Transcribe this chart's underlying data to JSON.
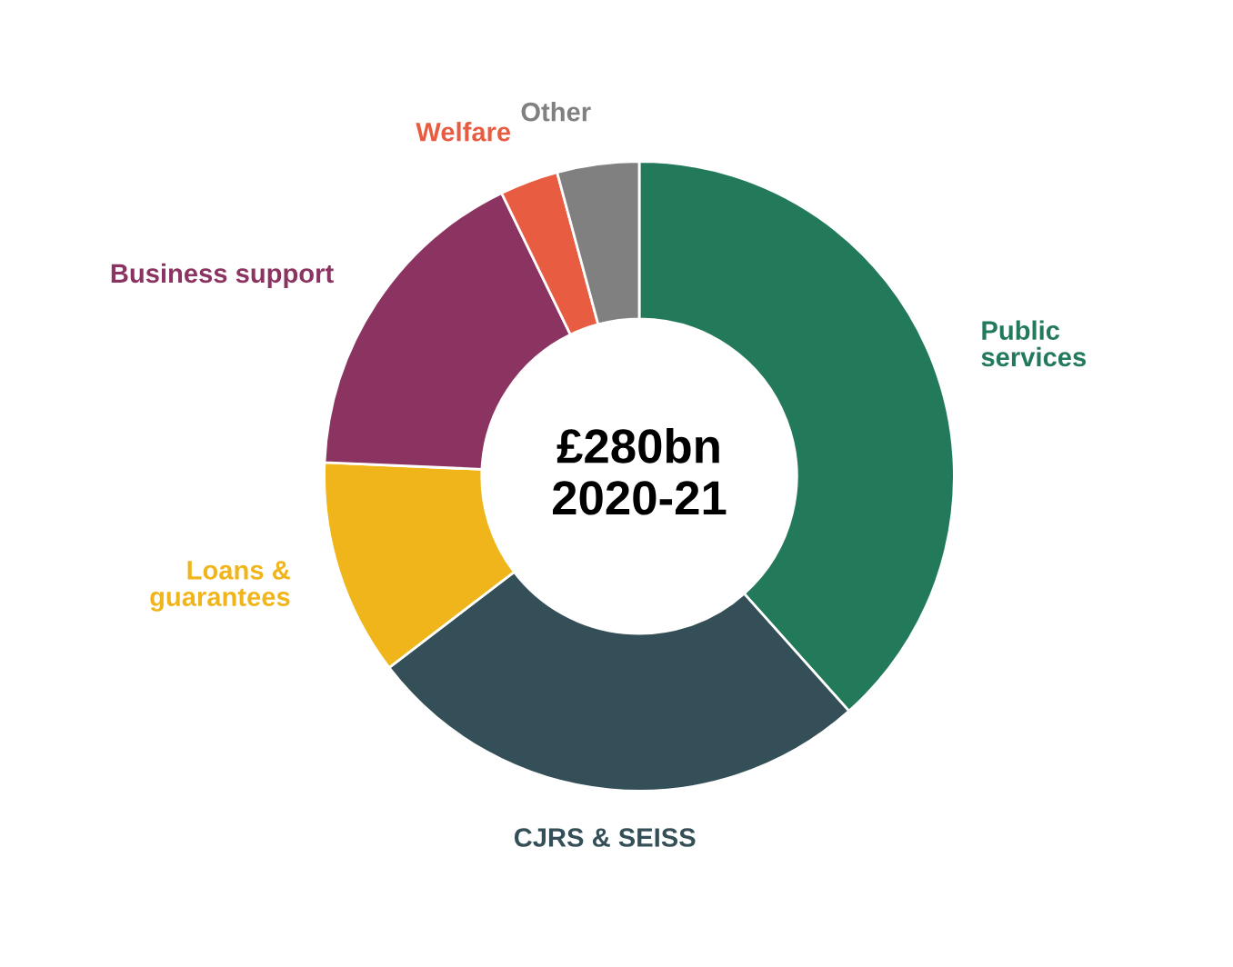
{
  "chart_data": {
    "type": "donut",
    "categories": [
      "Public\nservices",
      "CJRS & SEISS",
      "Loans &\nguarantees",
      "Business support",
      "Welfare",
      "Other"
    ],
    "values": [
      38.4,
      26.2,
      11.1,
      17.1,
      3.0,
      4.2
    ],
    "colors": [
      "#237a5b",
      "#344f57",
      "#f0b51a",
      "#8c3461",
      "#e85c42",
      "#808080"
    ],
    "annotations": [
      "£280bn\n2020-21"
    ],
    "legend": false
  }
}
